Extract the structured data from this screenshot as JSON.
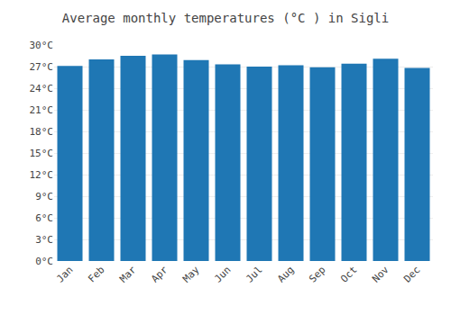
{
  "chart_data": {
    "type": "bar",
    "title": "Average monthly temperatures (°C ) in Sigli",
    "categories": [
      "Jan",
      "Feb",
      "Mar",
      "Apr",
      "May",
      "Jun",
      "Jul",
      "Aug",
      "Sep",
      "Oct",
      "Nov",
      "Dec"
    ],
    "values": [
      27.1,
      28.0,
      28.5,
      28.7,
      27.9,
      27.3,
      27.0,
      27.2,
      26.9,
      27.4,
      28.1,
      26.8
    ],
    "ylim": [
      0,
      30
    ],
    "yticks": [
      {
        "value": 0,
        "label": "0°C"
      },
      {
        "value": 3,
        "label": "3°C"
      },
      {
        "value": 6,
        "label": "6°C"
      },
      {
        "value": 9,
        "label": "9°C"
      },
      {
        "value": 12,
        "label": "12°C"
      },
      {
        "value": 15,
        "label": "15°C"
      },
      {
        "value": 18,
        "label": "18°C"
      },
      {
        "value": 21,
        "label": "21°C"
      },
      {
        "value": 24,
        "label": "24°C"
      },
      {
        "value": 27,
        "label": "27°C"
      },
      {
        "value": 30,
        "label": "30°C"
      }
    ],
    "grid": true
  }
}
